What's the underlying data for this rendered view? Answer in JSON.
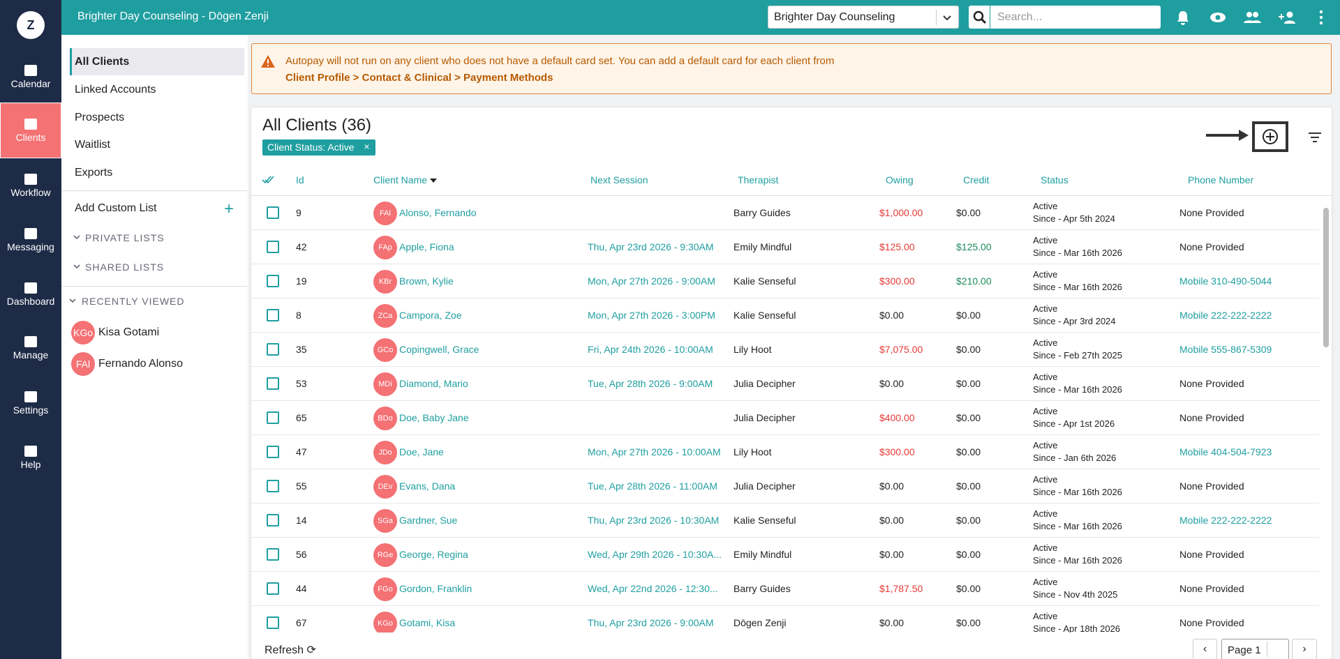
{
  "header": {
    "title": "Brighter Day Counseling - Dōgen Zenji",
    "org_select": "Brighter Day Counseling",
    "search_placeholder": "Search..."
  },
  "nav": {
    "logo": "Z",
    "items": [
      "Calendar",
      "Clients",
      "Workflow",
      "Messaging",
      "Dashboard",
      "Manage",
      "Settings",
      "Help"
    ]
  },
  "sidebar": {
    "lists": [
      "All Clients",
      "Linked Accounts",
      "Prospects",
      "Waitlist",
      "Exports"
    ],
    "add_custom": "Add Custom List",
    "private": "PRIVATE LISTS",
    "shared": "SHARED LISTS",
    "recent_title": "RECENTLY VIEWED",
    "recent": [
      {
        "initials": "KGo",
        "name": "Kisa Gotami"
      },
      {
        "initials": "FAl",
        "name": "Fernando Alonso"
      }
    ]
  },
  "banner": {
    "text": "Autopay will not run on any client who does not have a default card set. You can add a default card for each client from",
    "link": "Client Profile > Contact & Clinical > Payment Methods"
  },
  "table": {
    "title": "All Clients (36)",
    "chip": "Client Status: Active",
    "columns": [
      "Id",
      "Client Name",
      "Next Session",
      "Therapist",
      "Owing",
      "Credit",
      "Status",
      "Phone Number"
    ],
    "rows": [
      {
        "id": "9",
        "initials": "FAl",
        "name": "Alonso, Fernando",
        "next": "",
        "therapist": "Barry Guides",
        "owing": "$1,000.00",
        "owing_color": "#e53935",
        "credit": "$0.00",
        "credit_color": "#222222",
        "status": "Active",
        "since": "Since - Apr 5th 2024",
        "phone": "None Provided",
        "phone_color": "#222222"
      },
      {
        "id": "42",
        "initials": "FAp",
        "name": "Apple, Fiona",
        "next": "Thu, Apr 23rd 2026 - 9:30AM",
        "therapist": "Emily Mindful",
        "owing": "$125.00",
        "owing_color": "#e53935",
        "credit": "$125.00",
        "credit_color": "#1e8a5a",
        "status": "Active",
        "since": "Since - Mar 16th 2026",
        "phone": "None Provided",
        "phone_color": "#222222"
      },
      {
        "id": "19",
        "initials": "KBr",
        "name": "Brown, Kylie",
        "next": "Mon, Apr 27th 2026 - 9:00AM",
        "therapist": "Kalie Senseful",
        "owing": "$300.00",
        "owing_color": "#e53935",
        "credit": "$210.00",
        "credit_color": "#1e8a5a",
        "status": "Active",
        "since": "Since - Mar 16th 2026",
        "phone": "Mobile 310-490-5044",
        "phone_color": "#1f9ea0"
      },
      {
        "id": "8",
        "initials": "ZCa",
        "name": "Campora, Zoe",
        "next": "Mon, Apr 27th 2026 - 3:00PM",
        "therapist": "Kalie Senseful",
        "owing": "$0.00",
        "owing_color": "#222222",
        "credit": "$0.00",
        "credit_color": "#222222",
        "status": "Active",
        "since": "Since - Apr 3rd 2024",
        "phone": "Mobile 222-222-2222",
        "phone_color": "#1f9ea0"
      },
      {
        "id": "35",
        "initials": "GCo",
        "name": "Copingwell, Grace",
        "next": "Fri, Apr 24th 2026 - 10:00AM",
        "therapist": "Lily Hoot",
        "owing": "$7,075.00",
        "owing_color": "#e53935",
        "credit": "$0.00",
        "credit_color": "#222222",
        "status": "Active",
        "since": "Since - Feb 27th 2025",
        "phone": "Mobile 555-867-5309",
        "phone_color": "#1f9ea0"
      },
      {
        "id": "53",
        "initials": "MDi",
        "name": "Diamond, Mario",
        "next": "Tue, Apr 28th 2026 - 9:00AM",
        "therapist": "Julia Decipher",
        "owing": "$0.00",
        "owing_color": "#222222",
        "credit": "$0.00",
        "credit_color": "#222222",
        "status": "Active",
        "since": "Since - Mar 16th 2026",
        "phone": "None Provided",
        "phone_color": "#222222"
      },
      {
        "id": "65",
        "initials": "BDo",
        "name": "Doe, Baby Jane",
        "next": "",
        "therapist": "Julia Decipher",
        "owing": "$400.00",
        "owing_color": "#e53935",
        "credit": "$0.00",
        "credit_color": "#222222",
        "status": "Active",
        "since": "Since - Apr 1st 2026",
        "phone": "None Provided",
        "phone_color": "#222222"
      },
      {
        "id": "47",
        "initials": "JDo",
        "name": "Doe, Jane",
        "next": "Mon, Apr 27th 2026 - 10:00AM",
        "therapist": "Lily Hoot",
        "owing": "$300.00",
        "owing_color": "#e53935",
        "credit": "$0.00",
        "credit_color": "#222222",
        "status": "Active",
        "since": "Since - Jan 6th 2026",
        "phone": "Mobile 404-504-7923",
        "phone_color": "#1f9ea0"
      },
      {
        "id": "55",
        "initials": "DEv",
        "name": "Evans, Dana",
        "next": "Tue, Apr 28th 2026 - 11:00AM",
        "therapist": "Julia Decipher",
        "owing": "$0.00",
        "owing_color": "#222222",
        "credit": "$0.00",
        "credit_color": "#222222",
        "status": "Active",
        "since": "Since - Mar 16th 2026",
        "phone": "None Provided",
        "phone_color": "#222222"
      },
      {
        "id": "14",
        "initials": "SGa",
        "name": "Gardner, Sue",
        "next": "Thu, Apr 23rd 2026 - 10:30AM",
        "therapist": "Kalie Senseful",
        "owing": "$0.00",
        "owing_color": "#222222",
        "credit": "$0.00",
        "credit_color": "#222222",
        "status": "Active",
        "since": "Since - Mar 16th 2026",
        "phone": "Mobile 222-222-2222",
        "phone_color": "#1f9ea0"
      },
      {
        "id": "56",
        "initials": "RGe",
        "name": "George, Regina",
        "next": "Wed, Apr 29th 2026 - 10:30A...",
        "therapist": "Emily Mindful",
        "owing": "$0.00",
        "owing_color": "#222222",
        "credit": "$0.00",
        "credit_color": "#222222",
        "status": "Active",
        "since": "Since - Mar 16th 2026",
        "phone": "None Provided",
        "phone_color": "#222222"
      },
      {
        "id": "44",
        "initials": "FGo",
        "name": "Gordon, Franklin",
        "next": "Wed, Apr 22nd 2026 - 12:30...",
        "therapist": "Barry Guides",
        "owing": "$1,787.50",
        "owing_color": "#e53935",
        "credit": "$0.00",
        "credit_color": "#222222",
        "status": "Active",
        "since": "Since - Nov 4th 2025",
        "phone": "None Provided",
        "phone_color": "#222222"
      },
      {
        "id": "67",
        "initials": "KGo",
        "name": "Gotami, Kisa",
        "next": "Thu, Apr 23rd 2026 - 9:00AM",
        "therapist": "Dōgen Zenji",
        "owing": "$0.00",
        "owing_color": "#222222",
        "credit": "$0.00",
        "credit_color": "#222222",
        "status": "Active",
        "since": "Since - Apr 18th 2026",
        "phone": "None Provided",
        "phone_color": "#222222"
      }
    ],
    "refresh": "Refresh",
    "page": "Page 1"
  }
}
